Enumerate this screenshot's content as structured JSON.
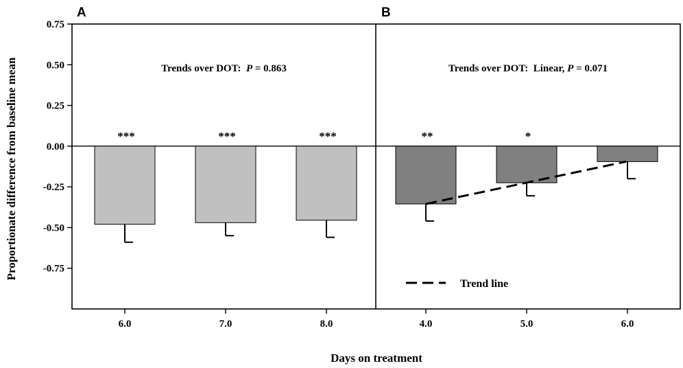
{
  "chart_data": {
    "type": "bar",
    "ylabel": "Proportionate difference from baseline mean",
    "xlabel": "Days on treatment",
    "ylim": [
      -1.0,
      0.75
    ],
    "yticks": [
      0.75,
      0.5,
      0.25,
      0.0,
      -0.25,
      -0.5,
      -0.75
    ],
    "ytick_labels": [
      "0.75",
      "0.50",
      "0.25",
      "0.00",
      "-0.25",
      "-0.50",
      "-0.75"
    ],
    "colors": {
      "panel_a_bar": "#c0c0c0",
      "panel_b_bar": "#808080"
    },
    "panels": [
      {
        "letter": "A",
        "annotation_prefix": "Trends over DOT:  ",
        "annotation_p": "P",
        "annotation_value": " = 0.863",
        "categories": [
          "6.0",
          "7.0",
          "8.0"
        ],
        "values": [
          -0.48,
          -0.47,
          -0.455
        ],
        "errors": [
          0.11,
          0.08,
          0.105
        ],
        "significance": [
          "***",
          "***",
          "***"
        ]
      },
      {
        "letter": "B",
        "annotation_prefix": "Trends over DOT:  Linear, ",
        "annotation_p": "P",
        "annotation_value": " = 0.071",
        "categories": [
          "4.0",
          "5.0",
          "6.0"
        ],
        "values": [
          -0.355,
          -0.225,
          -0.095
        ],
        "errors": [
          0.105,
          0.08,
          0.105
        ],
        "significance": [
          "**",
          "*",
          ""
        ],
        "trend_line": {
          "label": "Trend line",
          "start": -0.355,
          "end": -0.095
        }
      }
    ]
  }
}
